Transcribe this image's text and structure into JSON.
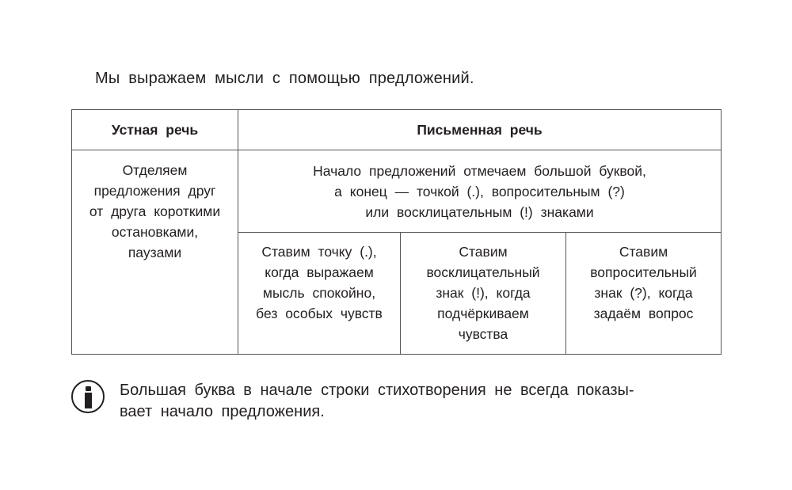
{
  "intro": "Мы выражаем мысли с помощью предложений.",
  "table": {
    "headers": [
      "Устная речь",
      "Письменная речь"
    ],
    "oral_lines": [
      "Отделяем",
      "предложения друг",
      "от друга короткими",
      "остановками,",
      "паузами"
    ],
    "written_lines": [
      "Начало предложений отмечаем большой буквой,",
      "а конец — точкой (.), вопросительным (?)",
      "или восклицательным (!) знаками"
    ],
    "sub": [
      [
        "Ставим точку (.),",
        "когда выражаем",
        "мысль спокойно,",
        "без особых чувств"
      ],
      [
        "Ставим",
        "восклицательный",
        "знак (!), когда",
        "подчёркиваем",
        "чувства"
      ],
      [
        "Ставим",
        "вопросительный",
        "знак (?), когда",
        "задаём вопрос"
      ]
    ]
  },
  "note": {
    "icon": "info-icon",
    "lines": [
      "Большая буква в начале строки стихотворения не всегда показы-",
      "вает начало предложения."
    ]
  }
}
